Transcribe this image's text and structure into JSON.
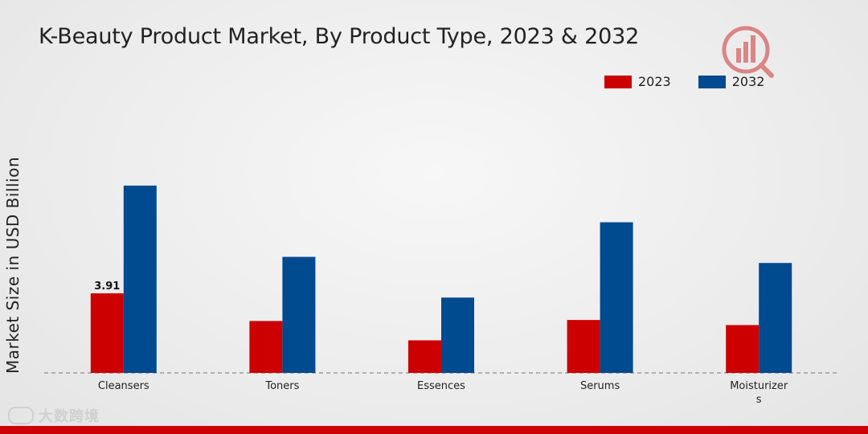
{
  "title": "K-Beauty Product Market, By Product Type, 2023 & 2032",
  "watermark": "大数跨境",
  "colors": {
    "s2023": "#cc0000",
    "s2032": "#004a8f",
    "bottom_bar": "#cc0000"
  },
  "chart_data": {
    "type": "bar",
    "title": "K-Beauty Product Market, By Product Type, 2023 & 2032",
    "xlabel": "",
    "ylabel": "Market Size in USD Billion",
    "categories": [
      "Cleansers",
      "Toners",
      "Essences",
      "Serums",
      "Moisturizer\ns"
    ],
    "series": [
      {
        "name": "2023",
        "values": [
          3.91,
          2.55,
          1.6,
          2.6,
          2.35
        ]
      },
      {
        "name": "2032",
        "values": [
          9.2,
          5.7,
          3.7,
          7.4,
          5.4
        ]
      }
    ],
    "data_labels": [
      {
        "series": "2023",
        "category": "Cleansers",
        "text": "3.91"
      }
    ],
    "ylim": [
      0,
      12
    ],
    "legend_position": "top-right",
    "grid": false
  }
}
